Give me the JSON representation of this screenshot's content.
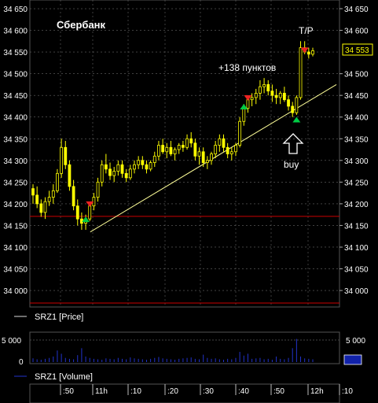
{
  "chart_data": {
    "type": "candlestick",
    "title": "Сбербанк",
    "symbol_price_label": "SRZ1 [Price]",
    "symbol_volume_label": "SRZ1 [Volume]",
    "price_axis_ticks": [
      "34 650",
      "34 600",
      "34 550",
      "34 500",
      "34 450",
      "34 400",
      "34 350",
      "34 300",
      "34 250",
      "34 200",
      "34 150",
      "34 100",
      "34 050",
      "34 000"
    ],
    "price_ticks_values": [
      34650,
      34600,
      34550,
      34500,
      34450,
      34400,
      34350,
      34300,
      34250,
      34200,
      34150,
      34100,
      34050,
      34000
    ],
    "right_price_ticks": [
      "34 650",
      "34 600",
      "34 500",
      "34 450",
      "34 400",
      "34 350",
      "34 300",
      "34 250",
      "34 200",
      "34 150",
      "34 100",
      "34 050",
      "34 000"
    ],
    "right_price_values": [
      34650,
      34600,
      34500,
      34450,
      34400,
      34350,
      34300,
      34250,
      34200,
      34150,
      34100,
      34050,
      34000
    ],
    "current_price_label": "34 553",
    "current_price": 34553,
    "ylim": [
      33962,
      34670
    ],
    "support_level": 34171,
    "trendline": [
      [
        0.195,
        34135
      ],
      [
        0.99,
        34475
      ]
    ],
    "annotations": {
      "profit": "+138 пунктов",
      "take_profit": "T/P",
      "buy": "buy"
    },
    "volume_ticks": [
      "5 000",
      "0"
    ],
    "volume_right_ticks": [
      "5 000"
    ],
    "volume_values": [
      5000,
      0
    ],
    "time_ticks": [
      ":50",
      "11h",
      ":10",
      ":20",
      ":30",
      ":40",
      ":50",
      "12h",
      ":10"
    ],
    "candles": [
      [
        34235,
        34245,
        34200,
        34220
      ],
      [
        34220,
        34240,
        34190,
        34200
      ],
      [
        34200,
        34210,
        34170,
        34180
      ],
      [
        34180,
        34215,
        34165,
        34205
      ],
      [
        34205,
        34230,
        34195,
        34215
      ],
      [
        34215,
        34245,
        34200,
        34230
      ],
      [
        34230,
        34280,
        34225,
        34270
      ],
      [
        34270,
        34350,
        34260,
        34330
      ],
      [
        34330,
        34345,
        34280,
        34290
      ],
      [
        34290,
        34300,
        34230,
        34240
      ],
      [
        34240,
        34255,
        34185,
        34195
      ],
      [
        34195,
        34210,
        34150,
        34165
      ],
      [
        34165,
        34180,
        34140,
        34155
      ],
      [
        34155,
        34175,
        34140,
        34165
      ],
      [
        34165,
        34200,
        34160,
        34195
      ],
      [
        34195,
        34225,
        34185,
        34215
      ],
      [
        34215,
        34260,
        34205,
        34250
      ],
      [
        34250,
        34300,
        34240,
        34290
      ],
      [
        34290,
        34315,
        34270,
        34280
      ],
      [
        34280,
        34295,
        34255,
        34265
      ],
      [
        34265,
        34285,
        34250,
        34275
      ],
      [
        34275,
        34300,
        34265,
        34290
      ],
      [
        34290,
        34300,
        34260,
        34270
      ],
      [
        34270,
        34280,
        34250,
        34260
      ],
      [
        34260,
        34290,
        34255,
        34280
      ],
      [
        34280,
        34300,
        34270,
        34290
      ],
      [
        34290,
        34310,
        34280,
        34300
      ],
      [
        34300,
        34310,
        34280,
        34290
      ],
      [
        34290,
        34300,
        34270,
        34280
      ],
      [
        34280,
        34300,
        34275,
        34295
      ],
      [
        34295,
        34320,
        34285,
        34310
      ],
      [
        34310,
        34345,
        34300,
        34335
      ],
      [
        34335,
        34350,
        34315,
        34320
      ],
      [
        34320,
        34340,
        34305,
        34330
      ],
      [
        34330,
        34345,
        34310,
        34315
      ],
      [
        34315,
        34330,
        34300,
        34325
      ],
      [
        34325,
        34340,
        34315,
        34335
      ],
      [
        34335,
        34345,
        34320,
        34330
      ],
      [
        34330,
        34360,
        34325,
        34350
      ],
      [
        34350,
        34365,
        34330,
        34340
      ],
      [
        34340,
        34350,
        34300,
        34310
      ],
      [
        34310,
        34330,
        34290,
        34320
      ],
      [
        34320,
        34330,
        34285,
        34295
      ],
      [
        34295,
        34310,
        34280,
        34300
      ],
      [
        34300,
        34320,
        34290,
        34315
      ],
      [
        34315,
        34345,
        34305,
        34335
      ],
      [
        34335,
        34360,
        34320,
        34350
      ],
      [
        34350,
        34360,
        34320,
        34330
      ],
      [
        34330,
        34340,
        34305,
        34315
      ],
      [
        34315,
        34330,
        34300,
        34320
      ],
      [
        34320,
        34340,
        34310,
        34335
      ],
      [
        34335,
        34400,
        34330,
        34390
      ],
      [
        34390,
        34430,
        34380,
        34420
      ],
      [
        34420,
        34450,
        34410,
        34440
      ],
      [
        34440,
        34455,
        34425,
        34445
      ],
      [
        34445,
        34465,
        34430,
        34455
      ],
      [
        34455,
        34485,
        34440,
        34470
      ],
      [
        34470,
        34490,
        34455,
        34475
      ],
      [
        34475,
        34485,
        34450,
        34460
      ],
      [
        34460,
        34475,
        34435,
        34450
      ],
      [
        34450,
        34465,
        34430,
        34445
      ],
      [
        34445,
        34460,
        34430,
        34455
      ],
      [
        34455,
        34470,
        34435,
        34440
      ],
      [
        34440,
        34450,
        34415,
        34425
      ],
      [
        34425,
        34435,
        34400,
        34410
      ],
      [
        34410,
        34450,
        34405,
        34445
      ],
      [
        34445,
        34575,
        34440,
        34560
      ],
      [
        34560,
        34575,
        34545,
        34550
      ],
      [
        34550,
        34560,
        34535,
        34545
      ],
      [
        34545,
        34560,
        34540,
        34553
      ]
    ],
    "signals": [
      {
        "type": "buy",
        "index": 13,
        "price": 34165
      },
      {
        "type": "sell",
        "index": 14,
        "price": 34200
      },
      {
        "type": "buy",
        "index": 52,
        "price": 34425
      },
      {
        "type": "sell",
        "index": 53,
        "price": 34445
      },
      {
        "type": "buy",
        "index": 65,
        "price": 34395
      },
      {
        "type": "sell",
        "index": 67,
        "price": 34555
      }
    ],
    "volumes": [
      800,
      600,
      500,
      700,
      900,
      1200,
      2500,
      1800,
      900,
      700,
      600,
      1500,
      3000,
      1200,
      900,
      700,
      600,
      500,
      800,
      700,
      600,
      900,
      700,
      600,
      1000,
      800,
      700,
      600,
      500,
      700,
      900,
      1100,
      800,
      700,
      600,
      500,
      700,
      800,
      900,
      1000,
      700,
      600,
      1600,
      900,
      700,
      800,
      600,
      500,
      700,
      600,
      900,
      2200,
      1400,
      1800,
      700,
      800,
      900,
      600,
      700,
      500,
      1200,
      700,
      600,
      900,
      3000,
      5600,
      1200,
      800,
      700,
      600
    ],
    "colors": {
      "background": "#000000",
      "candle": "#ffff00",
      "grid": "#666666",
      "support": "#cc0000",
      "trendline": "#ffff99",
      "buy_marker": "#00cc44",
      "sell_marker": "#ee2222",
      "volume": "#2233cc",
      "text": "#ffffff",
      "current_price_box": "#ffff00"
    }
  }
}
